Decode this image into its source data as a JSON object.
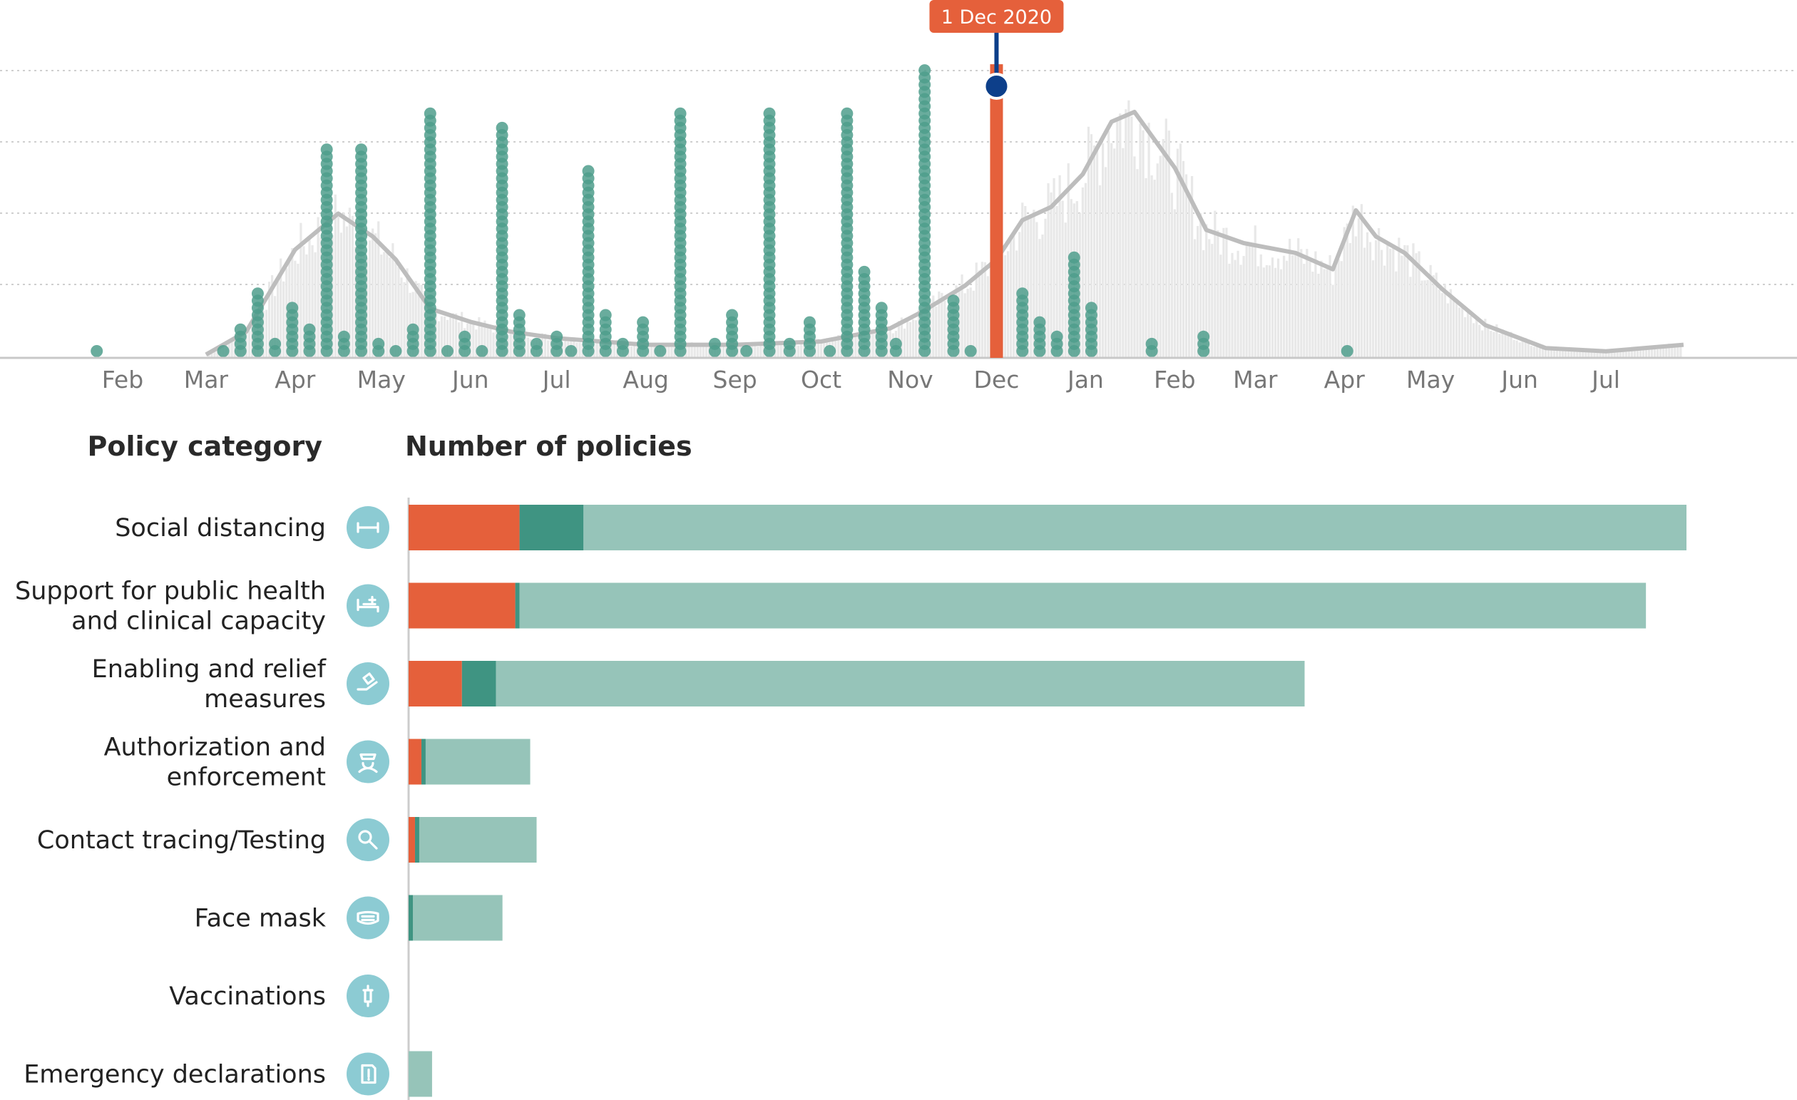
{
  "chart_data": [
    {
      "type": "bar",
      "subtype": "timeline",
      "x_ticks": [
        "Feb",
        "Mar",
        "Apr",
        "May",
        "Jun",
        "Jul",
        "Aug",
        "Sep",
        "Oct",
        "Nov",
        "Dec",
        "Jan",
        "Feb",
        "Mar",
        "Apr",
        "May",
        "Jun",
        "Jul"
      ],
      "x_range": [
        "2020-01-01",
        "2021-07-31"
      ],
      "selected_date_label": "1 Dec 2020",
      "grid": "horizontal dotted",
      "policy_counts": [
        {
          "date": "2020-01-23",
          "count": 1
        },
        {
          "date": "2020-03-07",
          "count": 1
        },
        {
          "date": "2020-03-13",
          "count": 4
        },
        {
          "date": "2020-03-19",
          "count": 9
        },
        {
          "date": "2020-03-25",
          "count": 2
        },
        {
          "date": "2020-03-31",
          "count": 7
        },
        {
          "date": "2020-04-06",
          "count": 4
        },
        {
          "date": "2020-04-12",
          "count": 29
        },
        {
          "date": "2020-04-18",
          "count": 3
        },
        {
          "date": "2020-04-24",
          "count": 29
        },
        {
          "date": "2020-04-30",
          "count": 2
        },
        {
          "date": "2020-05-06",
          "count": 1
        },
        {
          "date": "2020-05-12",
          "count": 4
        },
        {
          "date": "2020-05-18",
          "count": 34
        },
        {
          "date": "2020-05-24",
          "count": 1
        },
        {
          "date": "2020-05-30",
          "count": 3
        },
        {
          "date": "2020-06-05",
          "count": 1
        },
        {
          "date": "2020-06-12",
          "count": 32
        },
        {
          "date": "2020-06-18",
          "count": 6
        },
        {
          "date": "2020-06-24",
          "count": 2
        },
        {
          "date": "2020-07-01",
          "count": 3
        },
        {
          "date": "2020-07-06",
          "count": 1
        },
        {
          "date": "2020-07-12",
          "count": 26
        },
        {
          "date": "2020-07-18",
          "count": 6
        },
        {
          "date": "2020-07-24",
          "count": 2
        },
        {
          "date": "2020-07-31",
          "count": 5
        },
        {
          "date": "2020-08-06",
          "count": 1
        },
        {
          "date": "2020-08-13",
          "count": 34
        },
        {
          "date": "2020-08-25",
          "count": 2
        },
        {
          "date": "2020-08-31",
          "count": 6
        },
        {
          "date": "2020-09-05",
          "count": 1
        },
        {
          "date": "2020-09-13",
          "count": 34
        },
        {
          "date": "2020-09-20",
          "count": 2
        },
        {
          "date": "2020-09-27",
          "count": 5
        },
        {
          "date": "2020-10-04",
          "count": 1
        },
        {
          "date": "2020-10-10",
          "count": 34
        },
        {
          "date": "2020-10-16",
          "count": 12
        },
        {
          "date": "2020-10-22",
          "count": 7
        },
        {
          "date": "2020-10-27",
          "count": 2
        },
        {
          "date": "2020-11-06",
          "count": 40
        },
        {
          "date": "2020-11-16",
          "count": 8
        },
        {
          "date": "2020-11-22",
          "count": 1
        },
        {
          "date": "2020-12-01",
          "count": 40
        },
        {
          "date": "2020-12-10",
          "count": 9
        },
        {
          "date": "2020-12-16",
          "count": 5
        },
        {
          "date": "2020-12-22",
          "count": 3
        },
        {
          "date": "2020-12-28",
          "count": 14
        },
        {
          "date": "2021-01-03",
          "count": 7
        },
        {
          "date": "2021-01-24",
          "count": 2
        },
        {
          "date": "2021-02-11",
          "count": 3
        },
        {
          "date": "2021-04-02",
          "count": 1
        }
      ],
      "case_curve": [
        {
          "date": "2020-03-01",
          "value": 1
        },
        {
          "date": "2020-03-15",
          "value": 8
        },
        {
          "date": "2020-04-01",
          "value": 33
        },
        {
          "date": "2020-04-16",
          "value": 44
        },
        {
          "date": "2020-04-28",
          "value": 37
        },
        {
          "date": "2020-05-06",
          "value": 30
        },
        {
          "date": "2020-05-18",
          "value": 15
        },
        {
          "date": "2020-06-01",
          "value": 11
        },
        {
          "date": "2020-06-15",
          "value": 8
        },
        {
          "date": "2020-07-01",
          "value": 6
        },
        {
          "date": "2020-08-01",
          "value": 4
        },
        {
          "date": "2020-09-01",
          "value": 4
        },
        {
          "date": "2020-10-01",
          "value": 5
        },
        {
          "date": "2020-10-25",
          "value": 9
        },
        {
          "date": "2020-11-05",
          "value": 14
        },
        {
          "date": "2020-11-20",
          "value": 22
        },
        {
          "date": "2020-12-01",
          "value": 30
        },
        {
          "date": "2020-12-10",
          "value": 42
        },
        {
          "date": "2020-12-20",
          "value": 46
        },
        {
          "date": "2020-12-31",
          "value": 56
        },
        {
          "date": "2021-01-10",
          "value": 72
        },
        {
          "date": "2021-01-18",
          "value": 75
        },
        {
          "date": "2021-02-01",
          "value": 58
        },
        {
          "date": "2021-02-12",
          "value": 39
        },
        {
          "date": "2021-02-25",
          "value": 35
        },
        {
          "date": "2021-03-15",
          "value": 32
        },
        {
          "date": "2021-03-28",
          "value": 27
        },
        {
          "date": "2021-04-05",
          "value": 45
        },
        {
          "date": "2021-04-12",
          "value": 37
        },
        {
          "date": "2021-04-22",
          "value": 32
        },
        {
          "date": "2021-05-05",
          "value": 21
        },
        {
          "date": "2021-05-20",
          "value": 10
        },
        {
          "date": "2021-06-10",
          "value": 3
        },
        {
          "date": "2021-07-01",
          "value": 2
        },
        {
          "date": "2021-07-28",
          "value": 4
        }
      ]
    },
    {
      "type": "bar",
      "orientation": "horizontal",
      "stacked": true,
      "title": "Number of policies",
      "category_header": "Policy category",
      "xlim": [
        0,
        600
      ],
      "categories": [
        "Social distancing",
        "Support for public health and clinical capacity",
        "Enabling and relief measures",
        "Authorization and enforcement",
        "Contact tracing/Testing",
        "Face mask",
        "Vaccinations",
        "Emergency declarations"
      ],
      "category_lines": [
        [
          "Social distancing"
        ],
        [
          "Support for public health",
          "and clinical capacity"
        ],
        [
          "Enabling and relief",
          "measures"
        ],
        [
          "Authorization and",
          "enforcement"
        ],
        [
          "Contact tracing/Testing"
        ],
        [
          "Face mask"
        ],
        [
          "Vaccinations"
        ],
        [
          "Emergency declarations"
        ]
      ],
      "category_icons": [
        "social-distancing-icon",
        "hospital-bed-icon",
        "helping-hand-icon",
        "officer-icon",
        "virus-search-icon",
        "face-mask-icon",
        "syringe-icon",
        "document-alert-icon"
      ],
      "series": [
        {
          "values": [
            52,
            50,
            25,
            6,
            3,
            0,
            0,
            0
          ],
          "color": "#e5603b"
        },
        {
          "values": [
            30,
            2,
            16,
            2,
            2,
            2,
            0,
            0
          ],
          "color": "#3f9482"
        },
        {
          "values": [
            517,
            528,
            379,
            49,
            55,
            42,
            0,
            11
          ],
          "color": "#96c4b9"
        }
      ]
    }
  ],
  "colors": {
    "active": "#e5603b",
    "recent": "#3f9482",
    "earlier": "#96c4b9",
    "dots": "#4f9e8c",
    "curve": "#bdbdbd",
    "histogram": "#e8e8e8",
    "marker": "#0d3f8a",
    "icon_bg": "#8ccbd3"
  }
}
